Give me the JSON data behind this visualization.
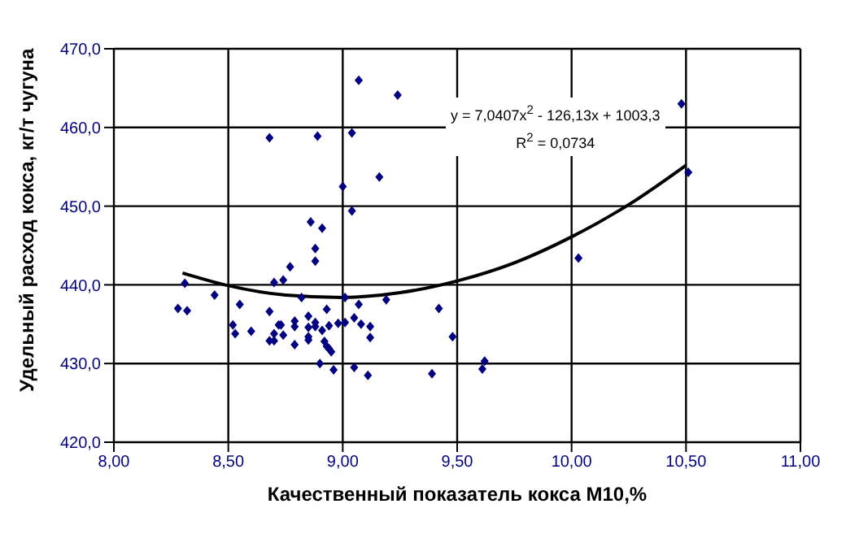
{
  "chart_data": {
    "type": "scatter",
    "xlabel": "Качественный показатель кокса М10,%",
    "ylabel": "Удельный расход кокса, кг/т чугуна",
    "annotations": [
      "y = 7,0407x$^{2}$ - 126,13x + 1003,3",
      "R$^{2}$ = 0,0734"
    ],
    "series": [
      {
        "color": "#000080",
        "marker": "diamond",
        "x": [
          9.07,
          9.24,
          8.68,
          8.89,
          9.04,
          9.16,
          9.0,
          9.04,
          8.86,
          8.91,
          8.88,
          8.88,
          8.77,
          8.74,
          8.7,
          8.31,
          8.44,
          8.82,
          9.01,
          9.07,
          9.19,
          8.55,
          8.28,
          8.32,
          8.68,
          8.93,
          9.42,
          8.85,
          8.79,
          8.52,
          8.72,
          8.73,
          8.79,
          8.88,
          8.94,
          8.98,
          9.01,
          9.05,
          9.08,
          9.12,
          8.85,
          8.88,
          8.91,
          8.53,
          8.6,
          8.7,
          8.74,
          8.85,
          8.85,
          8.68,
          8.7,
          9.12,
          8.79,
          8.92,
          8.93,
          8.94,
          8.95,
          8.9,
          8.96,
          9.05,
          9.11,
          9.39,
          9.48,
          10.03,
          9.61,
          9.62,
          10.48,
          10.51
        ],
        "values": [
          466.0,
          464.1,
          458.7,
          458.9,
          459.3,
          453.7,
          452.5,
          449.4,
          448.0,
          447.2,
          444.6,
          443.0,
          442.3,
          440.6,
          440.3,
          440.2,
          438.7,
          438.4,
          438.4,
          437.5,
          438.1,
          437.5,
          437.0,
          436.7,
          436.6,
          436.9,
          437.0,
          436.0,
          435.4,
          434.9,
          434.9,
          434.9,
          434.7,
          435.2,
          434.8,
          435.1,
          435.2,
          435.8,
          435.0,
          434.7,
          434.6,
          434.7,
          434.2,
          433.8,
          434.1,
          433.8,
          433.6,
          433.4,
          433.0,
          432.9,
          432.9,
          433.3,
          432.4,
          432.8,
          432.2,
          431.9,
          431.5,
          430.0,
          429.2,
          429.5,
          428.5,
          428.7,
          433.4,
          443.4,
          429.3,
          430.3,
          463.0,
          454.3
        ]
      },
      {
        "type": "line",
        "color": "#000000",
        "marker": "none",
        "line_style": "solid",
        "x": [
          8.3,
          8.5,
          8.75,
          9.0,
          9.25,
          9.5,
          9.75,
          10.0,
          10.25,
          10.5
        ],
        "values": [
          441.5,
          439.9,
          438.7,
          438.4,
          439.0,
          440.5,
          442.8,
          446.1,
          450.2,
          455.2
        ]
      }
    ],
    "xlim": [
      8,
      11
    ],
    "xticks": [
      {
        "value": 8,
        "label": "8,00"
      },
      {
        "value": 8.5,
        "label": "8,50"
      },
      {
        "value": 9,
        "label": "9,00"
      },
      {
        "value": 9.5,
        "label": "9,50"
      },
      {
        "value": 10,
        "label": "10,00"
      },
      {
        "value": 10.5,
        "label": "10,50"
      },
      {
        "value": 11,
        "label": "11,00"
      }
    ],
    "ylim": [
      420,
      470
    ],
    "yticks": [
      {
        "value": 420,
        "label": "420,0"
      },
      {
        "value": 430,
        "label": "430,0"
      },
      {
        "value": 440,
        "label": "440,0"
      },
      {
        "value": 450,
        "label": "450,0"
      },
      {
        "value": 460,
        "label": "460,0"
      },
      {
        "value": 470,
        "label": "470,0"
      }
    ],
    "grid": true,
    "legend": false
  }
}
